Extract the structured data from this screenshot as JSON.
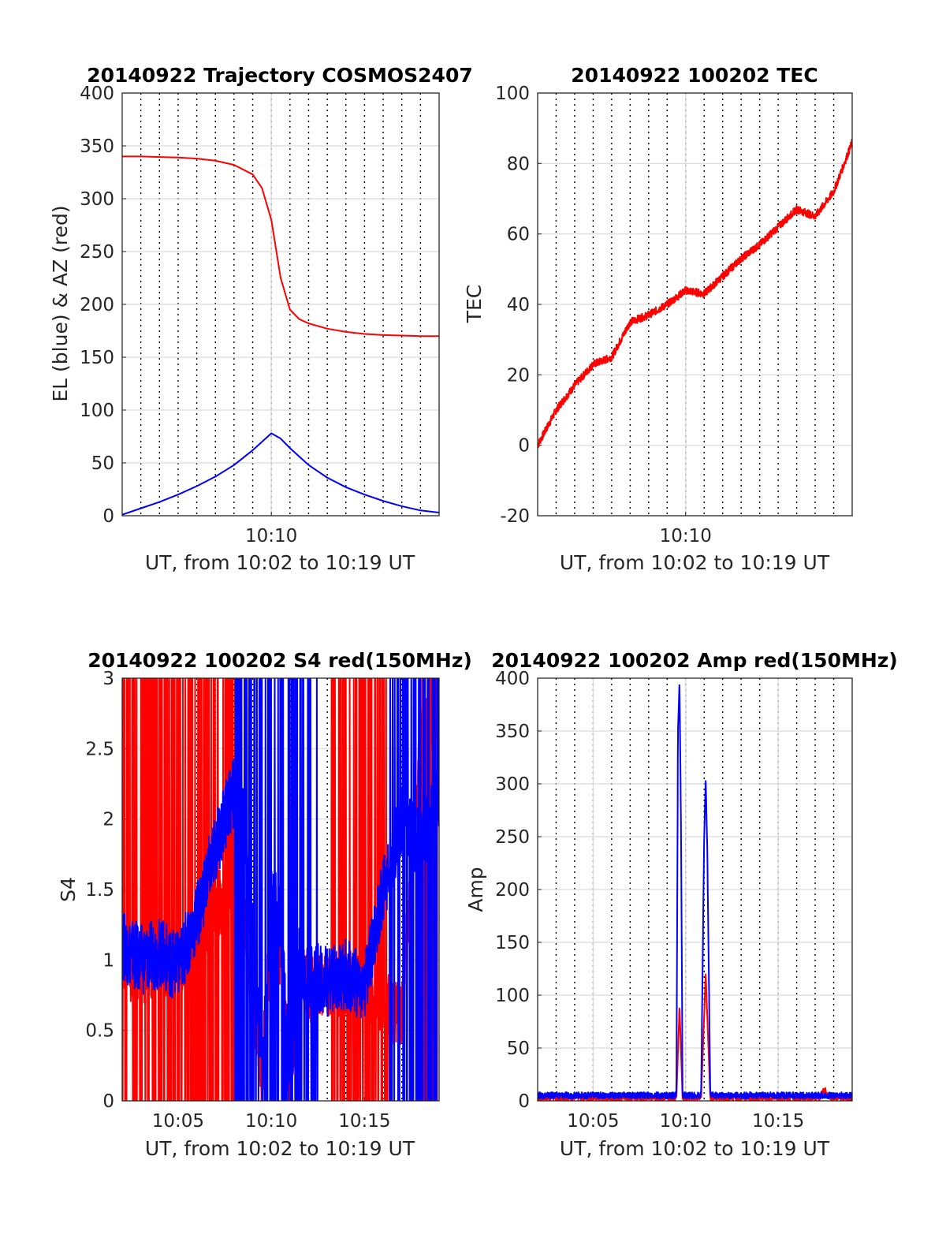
{
  "figure": {
    "panels": [
      {
        "id": "trajectory",
        "title": "20140922 Trajectory COSMOS2407",
        "xlabel": "UT, from 10:02 to 10:19 UT",
        "ylabel": "EL (blue) & AZ (red)"
      },
      {
        "id": "tec",
        "title": "20140922 100202 TEC",
        "xlabel": "UT, from 10:02 to 10:19 UT",
        "ylabel": "TEC"
      },
      {
        "id": "s4",
        "title": "20140922 100202 S4 red(150MHz)",
        "xlabel": "UT, from 10:02 to 10:19 UT",
        "ylabel": "S4"
      },
      {
        "id": "amp",
        "title": "20140922 100202 Amp red(150MHz)",
        "xlabel": "UT, from 10:02 to 10:19 UT",
        "ylabel": "Amp"
      }
    ]
  },
  "colors": {
    "red": "#ff0000",
    "blue": "#0000ff",
    "grid": "#d9d9d9",
    "axis": "#262626"
  },
  "chart_data": [
    {
      "type": "line",
      "title": "20140922 Trajectory COSMOS2407",
      "xlabel": "UT, from 10:02 to 10:19 UT",
      "ylabel": "EL (blue) & AZ (red)",
      "xlim": [
        "10:02",
        "10:19"
      ],
      "ylim": [
        0,
        400
      ],
      "yticks": [
        0,
        50,
        100,
        150,
        200,
        250,
        300,
        350,
        400
      ],
      "xticks": [
        "10:10"
      ],
      "grid": true,
      "series": [
        {
          "color": "#ff0000",
          "x": [
            "10:02",
            "10:03",
            "10:04",
            "10:05",
            "10:06",
            "10:07",
            "10:08",
            "10:09",
            "10:09:30",
            "10:10",
            "10:10:30",
            "10:11",
            "10:11:30",
            "10:12",
            "10:13",
            "10:14",
            "10:15",
            "10:16",
            "10:17",
            "10:18",
            "10:19"
          ],
          "values": [
            340,
            340,
            339.5,
            339,
            338,
            336,
            332,
            323,
            310,
            280,
            225,
            195,
            186,
            182,
            177,
            174,
            172,
            171,
            170.5,
            170,
            170
          ]
        },
        {
          "color": "#0000ff",
          "x": [
            "10:02",
            "10:03",
            "10:04",
            "10:05",
            "10:06",
            "10:07",
            "10:08",
            "10:09",
            "10:09:30",
            "10:10",
            "10:10:30",
            "10:11",
            "10:11:30",
            "10:12",
            "10:13",
            "10:14",
            "10:15",
            "10:16",
            "10:17",
            "10:18",
            "10:19"
          ],
          "values": [
            1,
            7,
            13,
            20,
            28,
            37,
            48,
            62,
            70,
            78,
            73,
            64,
            56,
            48,
            36,
            27,
            20,
            14,
            9,
            5,
            3
          ]
        }
      ]
    },
    {
      "type": "line",
      "title": "20140922 100202 TEC",
      "xlabel": "UT, from 10:02 to 10:19 UT",
      "ylabel": "TEC",
      "xlim": [
        "10:02",
        "10:19"
      ],
      "ylim": [
        -20,
        100
      ],
      "yticks": [
        -20,
        0,
        20,
        40,
        60,
        80,
        100
      ],
      "xticks": [
        "10:10"
      ],
      "grid": true,
      "series": [
        {
          "color": "#ff0000",
          "x": [
            "10:02",
            "10:03",
            "10:04",
            "10:05",
            "10:06",
            "10:07",
            "10:08",
            "10:09",
            "10:10",
            "10:11",
            "10:12",
            "10:13",
            "10:14",
            "10:15",
            "10:16",
            "10:17",
            "10:18",
            "10:19"
          ],
          "values": [
            0,
            10,
            17,
            23,
            25,
            35,
            37,
            40,
            44,
            43,
            48,
            53,
            57,
            62,
            67,
            65,
            72,
            86
          ]
        }
      ]
    },
    {
      "type": "line",
      "title": "20140922 100202 S4 red(150MHz)",
      "xlabel": "UT, from 10:02 to 10:19 UT",
      "ylabel": "S4",
      "xlim": [
        "10:02",
        "10:19"
      ],
      "ylim": [
        0,
        3
      ],
      "yticks": [
        0,
        0.5,
        1,
        1.5,
        2,
        2.5,
        3
      ],
      "xticks": [
        "10:05",
        "10:10",
        "10:15"
      ],
      "grid": true,
      "series": [
        {
          "color": "#ff0000",
          "x": [
            "10:02",
            "10:03",
            "10:04",
            "10:05",
            "10:06",
            "10:07",
            "10:08",
            "10:08:30",
            "10:09",
            "10:09:30",
            "10:10",
            "10:10:30",
            "10:11",
            "10:11:30",
            "10:12",
            "10:13",
            "10:14",
            "10:15",
            "10:16",
            "10:17",
            "10:18",
            "10:19"
          ],
          "values": [
            1.0,
            0.9,
            1.0,
            0.95,
            1.2,
            1.4,
            1.5,
            1.45,
            0.7,
            0.2,
            1.2,
            1.0,
            0.15,
            0.9,
            0.8,
            0.85,
            0.85,
            0.75,
            0.7,
            0.6,
            2.6,
            2.8
          ]
        },
        {
          "color": "#0000ff",
          "x": [
            "10:02",
            "10:03",
            "10:04",
            "10:05",
            "10:06",
            "10:07",
            "10:08",
            "10:08:30",
            "10:09",
            "10:09:30",
            "10:10",
            "10:10:30",
            "10:11",
            "10:11:30",
            "10:12",
            "10:13",
            "10:14",
            "10:15",
            "10:16",
            "10:17",
            "10:18",
            "10:19"
          ],
          "values": [
            1.1,
            1.0,
            1.05,
            0.95,
            1.3,
            1.8,
            2.2,
            2.0,
            1.2,
            0.2,
            1.6,
            1.2,
            0.15,
            1.0,
            0.9,
            0.85,
            0.9,
            0.8,
            1.5,
            2.0,
            1.8,
            2.2
          ]
        }
      ]
    },
    {
      "type": "line",
      "title": "20140922 100202 Amp red(150MHz)",
      "xlabel": "UT, from 10:02 to 10:19 UT",
      "ylabel": "Amp",
      "xlim": [
        "10:02",
        "10:19"
      ],
      "ylim": [
        0,
        400
      ],
      "yticks": [
        0,
        50,
        100,
        150,
        200,
        250,
        300,
        350,
        400
      ],
      "xticks": [
        "10:05",
        "10:10",
        "10:15"
      ],
      "grid": true,
      "series": [
        {
          "color": "#ff0000",
          "x": [
            "10:02",
            "10:09:30",
            "10:09:40",
            "10:09:50",
            "10:10",
            "10:10:50",
            "10:11:05",
            "10:11:20",
            "10:12",
            "10:17:15",
            "10:17:30",
            "10:17:45",
            "10:19"
          ],
          "values": [
            2,
            2,
            90,
            2,
            2,
            2,
            120,
            2,
            2,
            2,
            10,
            2,
            2
          ]
        },
        {
          "color": "#0000ff",
          "x": [
            "10:02",
            "10:09:30",
            "10:09:35",
            "10:09:40",
            "10:09:45",
            "10:09:50",
            "10:10",
            "10:10:50",
            "10:11",
            "10:11:05",
            "10:11:10",
            "10:11:20",
            "10:12",
            "10:19"
          ],
          "values": [
            4,
            4,
            350,
            396,
            260,
            4,
            4,
            4,
            250,
            303,
            240,
            4,
            4,
            4
          ]
        }
      ]
    }
  ]
}
